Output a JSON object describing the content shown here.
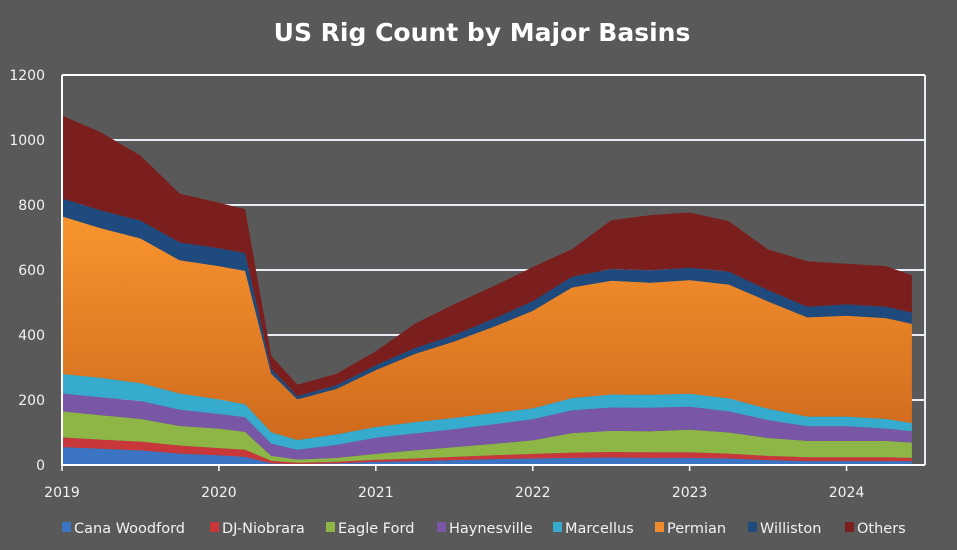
{
  "chart_data": {
    "type": "area",
    "stacked": true,
    "title": "US Rig Count by Major Basins",
    "xlabel": "",
    "ylabel": "",
    "ylim": [
      0,
      1200
    ],
    "yticks": [
      "0",
      "200",
      "400",
      "600",
      "800",
      "1000",
      "1200"
    ],
    "xlim": [
      2019,
      2024.5
    ],
    "xticks": [
      "2019",
      "2020",
      "2021",
      "2022",
      "2023",
      "2024"
    ],
    "grid": "horizontal",
    "legend": "bottom",
    "x": [
      "2019-01",
      "2019-04",
      "2019-07",
      "2019-10",
      "2020-01",
      "2020-03",
      "2020-05",
      "2020-07",
      "2020-10",
      "2021-01",
      "2021-04",
      "2021-07",
      "2021-10",
      "2022-01",
      "2022-04",
      "2022-07",
      "2022-10",
      "2023-01",
      "2023-04",
      "2023-07",
      "2023-10",
      "2024-01",
      "2024-04",
      "2024-06"
    ],
    "series": [
      {
        "name": "Cana Woodford",
        "color": "#3b74c2",
        "values": [
          55,
          50,
          45,
          35,
          30,
          25,
          5,
          3,
          5,
          10,
          12,
          15,
          18,
          20,
          22,
          23,
          22,
          22,
          20,
          15,
          12,
          12,
          12,
          12
        ]
      },
      {
        "name": "DJ-Niobrara",
        "color": "#c8383a",
        "values": [
          30,
          28,
          27,
          25,
          22,
          22,
          8,
          4,
          5,
          6,
          8,
          10,
          12,
          14,
          16,
          17,
          17,
          17,
          15,
          13,
          12,
          12,
          12,
          10
        ]
      },
      {
        "name": "Eagle Ford",
        "color": "#8db646",
        "values": [
          80,
          75,
          70,
          60,
          60,
          55,
          15,
          10,
          12,
          18,
          25,
          30,
          35,
          42,
          60,
          65,
          65,
          70,
          65,
          55,
          50,
          50,
          50,
          47
        ]
      },
      {
        "name": "Haynesville",
        "color": "#7a56a6",
        "values": [
          55,
          55,
          55,
          50,
          45,
          45,
          38,
          30,
          40,
          50,
          52,
          55,
          60,
          65,
          70,
          72,
          72,
          70,
          65,
          55,
          45,
          45,
          38,
          35
        ]
      },
      {
        "name": "Marcellus",
        "color": "#36abcd",
        "values": [
          60,
          60,
          55,
          50,
          45,
          40,
          35,
          30,
          32,
          33,
          35,
          35,
          35,
          33,
          38,
          40,
          40,
          40,
          40,
          35,
          30,
          30,
          30,
          25
        ]
      },
      {
        "name": "Permian",
        "color": "#f08a2c",
        "values": [
          485,
          460,
          445,
          410,
          410,
          410,
          180,
          125,
          140,
          175,
          210,
          235,
          265,
          300,
          340,
          350,
          345,
          350,
          350,
          330,
          305,
          310,
          310,
          305
        ]
      },
      {
        "name": "Williston",
        "color": "#1f4a7e",
        "values": [
          55,
          55,
          55,
          55,
          55,
          55,
          15,
          10,
          12,
          15,
          18,
          20,
          25,
          30,
          33,
          36,
          38,
          38,
          40,
          35,
          33,
          35,
          35,
          35
        ]
      },
      {
        "name": "Others",
        "color": "#7b1f1e",
        "values": [
          255,
          240,
          200,
          150,
          140,
          135,
          40,
          35,
          35,
          43,
          75,
          95,
          100,
          105,
          85,
          150,
          170,
          170,
          155,
          125,
          140,
          125,
          125,
          115
        ]
      }
    ]
  }
}
